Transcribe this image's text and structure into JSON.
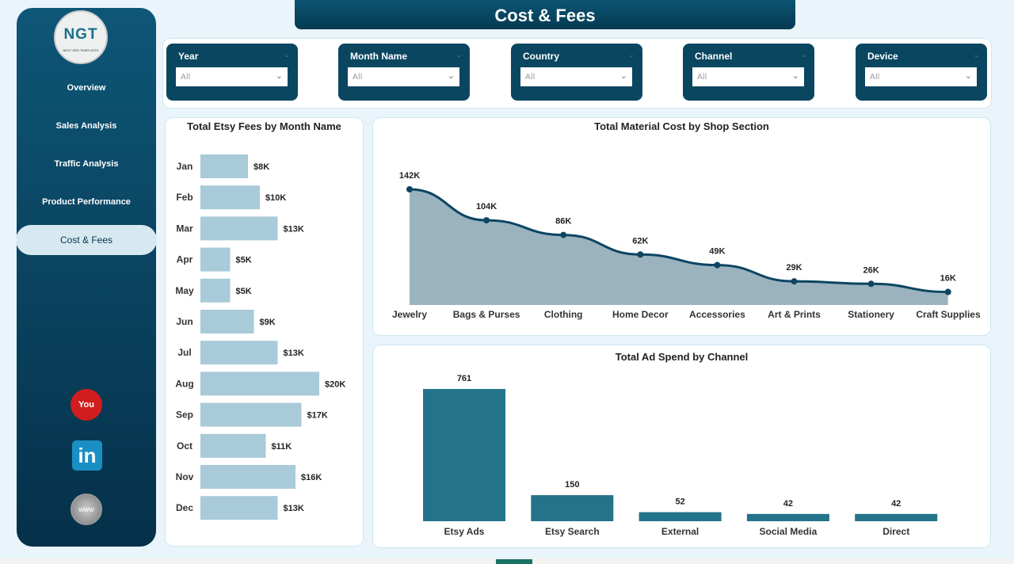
{
  "header": {
    "title": "Cost & Fees"
  },
  "sidebar": {
    "logo_text": "NGT",
    "logo_sub": "NEXT GEN TEMPLATES",
    "items": [
      {
        "label": "Overview"
      },
      {
        "label": "Sales Analysis"
      },
      {
        "label": "Traffic Analysis"
      },
      {
        "label": "Product Performance"
      },
      {
        "label": "Cost & Fees",
        "active": true
      }
    ],
    "social": [
      "youtube-icon",
      "linkedin-icon",
      "web-icon"
    ]
  },
  "filters": [
    {
      "label": "Year",
      "value": "All"
    },
    {
      "label": "Month Name",
      "value": "All"
    },
    {
      "label": "Country",
      "value": "All"
    },
    {
      "label": "Channel",
      "value": "All"
    },
    {
      "label": "Device",
      "value": "All"
    }
  ],
  "colors": {
    "sidebar": "#0e5677",
    "month_bar": "#a8cad9",
    "area": "#9ab3be",
    "line": "#0d4562",
    "ad_bar": "#23748a"
  },
  "chart_data": [
    {
      "type": "bar",
      "orientation": "horizontal",
      "title": "Total Etsy Fees by Month Name",
      "categories": [
        "Jan",
        "Feb",
        "Mar",
        "Apr",
        "May",
        "Jun",
        "Jul",
        "Aug",
        "Sep",
        "Oct",
        "Nov",
        "Dec"
      ],
      "values": [
        8,
        10,
        13,
        5,
        5,
        9,
        13,
        20,
        17,
        11,
        16,
        13
      ],
      "labels": [
        "$8K",
        "$10K",
        "$13K",
        "$5K",
        "$5K",
        "$9K",
        "$13K",
        "$20K",
        "$17K",
        "$11K",
        "$16K",
        "$13K"
      ]
    },
    {
      "type": "area",
      "title": "Total Material Cost by Shop Section",
      "categories": [
        "Jewelry",
        "Bags & Purses",
        "Clothing",
        "Home Decor",
        "Accessories",
        "Art & Prints",
        "Stationery",
        "Craft Supplies"
      ],
      "values": [
        142,
        104,
        86,
        62,
        49,
        29,
        26,
        16
      ],
      "labels": [
        "142K",
        "104K",
        "86K",
        "62K",
        "49K",
        "29K",
        "26K",
        "16K"
      ]
    },
    {
      "type": "bar",
      "title": "Total Ad Spend by Channel",
      "categories": [
        "Etsy Ads",
        "Etsy Search",
        "External",
        "Social Media",
        "Direct"
      ],
      "values": [
        761,
        150,
        52,
        42,
        42
      ],
      "labels": [
        "761",
        "150",
        "52",
        "42",
        "42"
      ]
    }
  ]
}
